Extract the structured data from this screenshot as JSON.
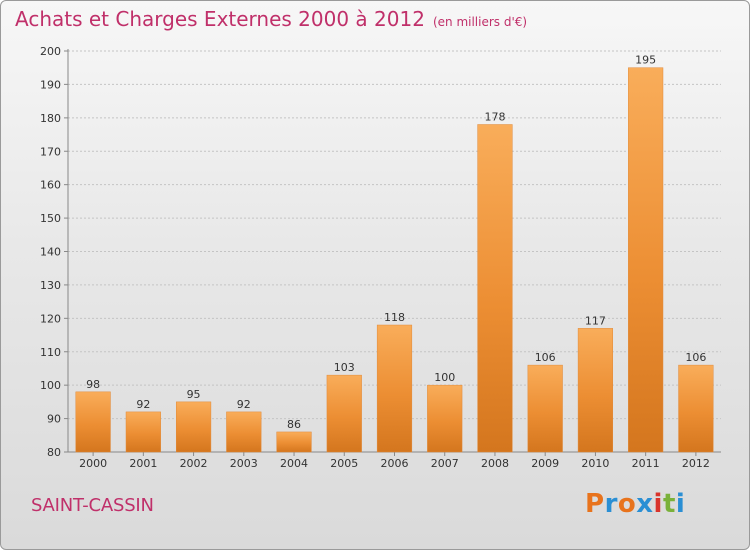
{
  "header": {
    "title": "Achats et Charges Externes 2000 à 2012",
    "subtitle": "(en milliers d'€)"
  },
  "footer": {
    "place": "SAINT-CASSIN",
    "logo": "Proxiti"
  },
  "colors": {
    "title": "#c0306a",
    "bar_light": "#f7a54f",
    "bar_dark": "#d4761e",
    "logo_letters": [
      "#e8731c",
      "#2a8fd4",
      "#e8731c",
      "#2a8fd4",
      "#d9342b",
      "#7ab13a",
      "#2a8fd4"
    ]
  },
  "chart_data": {
    "type": "bar",
    "categories": [
      "2000",
      "2001",
      "2002",
      "2003",
      "2004",
      "2005",
      "2006",
      "2007",
      "2008",
      "2009",
      "2010",
      "2011",
      "2012"
    ],
    "values": [
      98,
      92,
      95,
      92,
      86,
      103,
      118,
      100,
      178,
      106,
      117,
      195,
      106
    ],
    "ylim": [
      80,
      200
    ],
    "yticks": [
      80,
      90,
      100,
      110,
      120,
      130,
      140,
      150,
      160,
      170,
      180,
      190,
      200
    ],
    "grid": "horizontal-dotted",
    "legend": "none"
  }
}
